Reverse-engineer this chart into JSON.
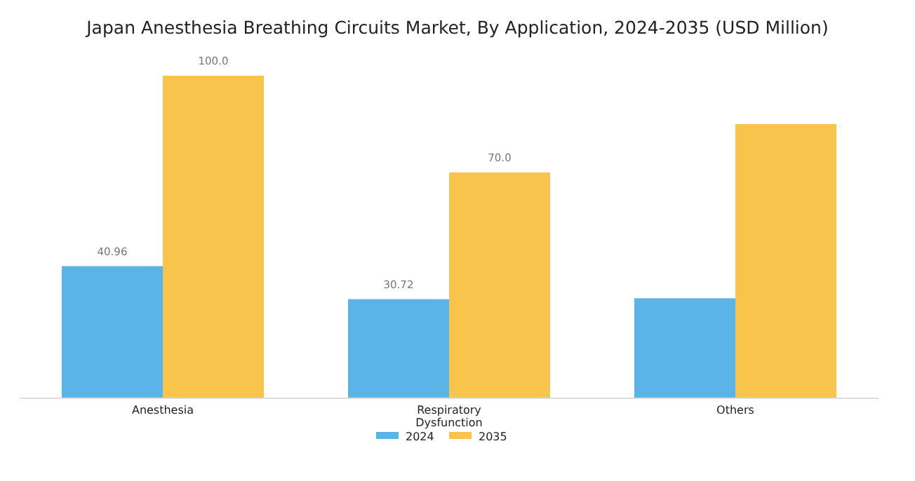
{
  "chart_data": {
    "type": "bar",
    "title": "Japan Anesthesia Breathing Circuits Market, By Application, 2024-2035 (USD Million)",
    "categories": [
      "Anesthesia",
      "Respiratory Dysfunction",
      "Others"
    ],
    "series": [
      {
        "name": "2024",
        "color": "#5ab4e5",
        "values": [
          40.96,
          30.72,
          31
        ],
        "value_labels": [
          "40.96",
          "30.72",
          null
        ]
      },
      {
        "name": "2035",
        "color": "#f9c44b",
        "values": [
          100.0,
          70.0,
          85
        ],
        "value_labels": [
          "100.0",
          "70.0",
          null
        ]
      }
    ],
    "legend": "bottom",
    "grid": false
  }
}
